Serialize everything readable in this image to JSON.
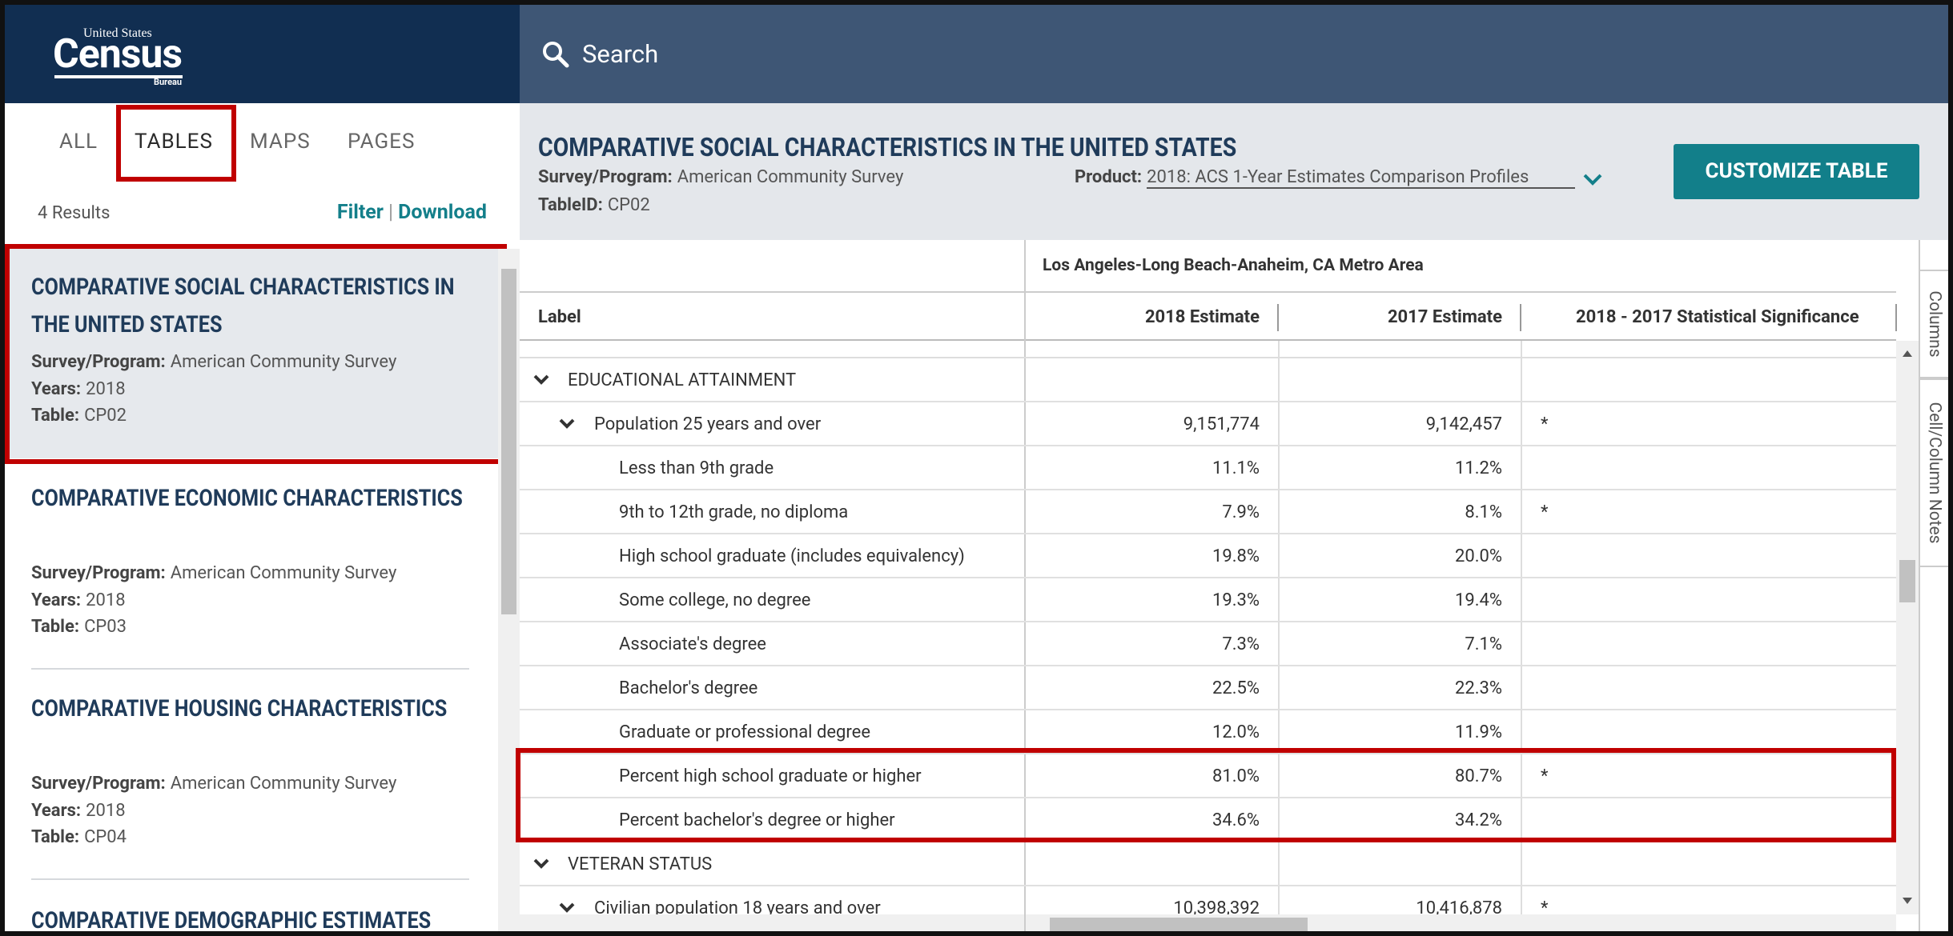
{
  "logo": {
    "top": "United States",
    "main": "Census",
    "bottom": "Bureau"
  },
  "search": "Search",
  "tabs": [
    "ALL",
    "TABLES",
    "MAPS",
    "PAGES"
  ],
  "results": {
    "count": "4 Results",
    "filter": "Filter",
    "separator": "|",
    "download": "Download"
  },
  "results_list": [
    {
      "title": "COMPARATIVE SOCIAL CHARACTERISTICS IN THE UNITED STATES",
      "fields": [
        {
          "label": "Survey/Program:",
          "value": "American Community Survey"
        },
        {
          "label": "Years:",
          "value": "2018"
        },
        {
          "label": "Table:",
          "value": "CP02"
        }
      ]
    },
    {
      "title": "COMPARATIVE ECONOMIC CHARACTERISTICS",
      "fields": [
        {
          "label": "Survey/Program:",
          "value": "American Community Survey"
        },
        {
          "label": "Years:",
          "value": "2018"
        },
        {
          "label": "Table:",
          "value": "CP03"
        }
      ]
    },
    {
      "title": "COMPARATIVE HOUSING CHARACTERISTICS",
      "fields": [
        {
          "label": "Survey/Program:",
          "value": "American Community Survey"
        },
        {
          "label": "Years:",
          "value": "2018"
        },
        {
          "label": "Table:",
          "value": "CP04"
        }
      ]
    },
    {
      "title": "COMPARATIVE DEMOGRAPHIC ESTIMATES"
    }
  ],
  "table_header": {
    "title": "COMPARATIVE SOCIAL CHARACTERISTICS IN THE UNITED STATES",
    "survey_label": "Survey/Program:",
    "survey": "American Community Survey",
    "tableid_label": "TableID:",
    "tableid": "CP02",
    "product_label": "Product:",
    "product": "2018: ACS 1-Year Estimates Comparison Profiles",
    "customize": "CUSTOMIZE TABLE"
  },
  "table": {
    "geography": "Los Angeles-Long Beach-Anaheim, CA Metro Area",
    "columns": [
      "Label",
      "2018 Estimate",
      "2017 Estimate",
      "2018 - 2017 Statistical Significance"
    ],
    "rows": [
      [
        "EDUCATIONAL ATTAINMENT"
      ],
      [
        "Population 25 years and over",
        "9,151,774",
        "9,142,457",
        "*"
      ],
      [
        "Less than 9th grade",
        "11.1%",
        "11.2%"
      ],
      [
        "9th to 12th grade, no diploma",
        "7.9%",
        "8.1%",
        "*"
      ],
      [
        "High school graduate (includes equivalency)",
        "19.8%",
        "20.0%"
      ],
      [
        "Some college, no degree",
        "19.3%",
        "19.4%"
      ],
      [
        "Associate's degree",
        "7.3%",
        "7.1%"
      ],
      [
        "Bachelor's degree",
        "22.5%",
        "22.3%"
      ],
      [
        "Graduate or professional degree",
        "12.0%",
        "11.9%"
      ],
      [
        "Percent high school graduate or higher",
        "81.0%",
        "80.7%",
        "*"
      ],
      [
        "Percent bachelor's degree or higher",
        "34.6%",
        "34.2%"
      ],
      [
        "VETERAN STATUS"
      ],
      [
        "Civilian population 18 years and over",
        "10,398,392",
        "10,416,878",
        "*"
      ]
    ]
  },
  "side_tabs": [
    "Columns",
    "Cell/Column Notes"
  ]
}
